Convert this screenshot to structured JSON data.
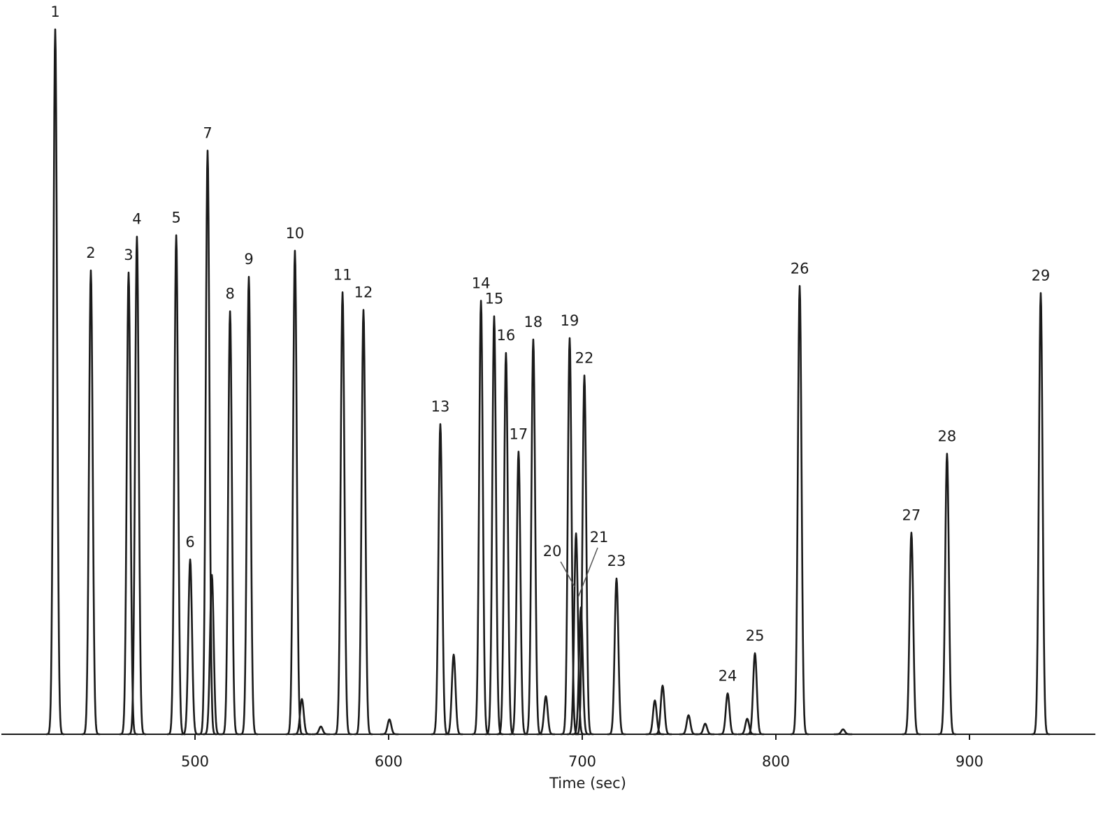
{
  "chart_data": {
    "type": "chromatogram",
    "xlabel": "Time (sec)",
    "xlim": [
      400,
      965
    ],
    "xticks": [
      500,
      600,
      700,
      800,
      900
    ],
    "ylim": [
      0,
      100
    ],
    "color": "#1a1a1a",
    "peaks": {
      "labels": [
        "1",
        "2",
        "3",
        "4",
        "5",
        "6",
        "7",
        "8",
        "9",
        "10",
        "11",
        "12",
        "13",
        "14",
        "15",
        "16",
        "17",
        "18",
        "19",
        "20",
        "21",
        "22",
        "23",
        "24",
        "25",
        "26",
        "27",
        "28",
        "29"
      ],
      "x": [
        427.8,
        446.2,
        465.7,
        470.0,
        490.3,
        497.5,
        506.5,
        518.1,
        527.8,
        551.6,
        576.2,
        587.0,
        626.7,
        647.7,
        654.5,
        660.6,
        667.1,
        674.7,
        693.5,
        696.8,
        699.3,
        701.1,
        717.7,
        775.1,
        789.2,
        812.3,
        870.0,
        888.4,
        936.8
      ],
      "values": [
        100,
        65.8,
        65.5,
        70.6,
        70.8,
        24.8,
        82.8,
        60.0,
        64.9,
        68.6,
        62.7,
        60.2,
        44.0,
        61.5,
        59.3,
        54.1,
        40.1,
        56.0,
        56.2,
        28.5,
        18.0,
        50.9,
        22.1,
        5.8,
        11.5,
        63.6,
        28.6,
        39.8,
        62.6
      ]
    },
    "minor_peaks": {
      "x": [
        508.7,
        555.2,
        565.0,
        600.4,
        633.6,
        681.2,
        737.5,
        741.5,
        754.9,
        763.5,
        785.2,
        834.7
      ],
      "values": [
        22.6,
        5.0,
        1.1,
        2.1,
        11.3,
        5.4,
        4.8,
        6.9,
        2.7,
        1.5,
        2.2,
        0.7
      ]
    }
  }
}
